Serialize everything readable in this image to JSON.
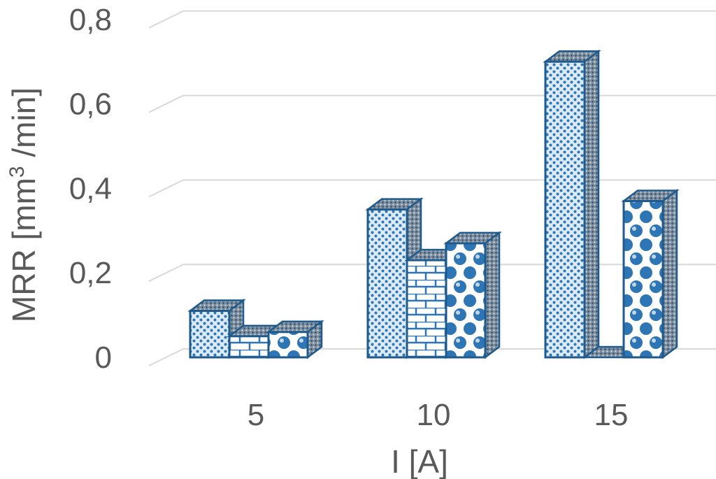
{
  "chart_data": {
    "type": "bar",
    "style": "3d-clustered-column",
    "categories": [
      "5",
      "10",
      "15"
    ],
    "series": [
      {
        "values": [
          0.11,
          0.35,
          0.7
        ]
      },
      {
        "values": [
          0.05,
          0.23,
          0.0
        ]
      },
      {
        "values": [
          0.06,
          0.27,
          0.37
        ]
      }
    ],
    "xlabel": "I [A]",
    "ylabel_main": "MRR [mm",
    "ylabel_sup": "3",
    "ylabel_tail": " /min]",
    "ylim": [
      0,
      0.8
    ],
    "y_ticks": [
      "0",
      "0,2",
      "0,4",
      "0,6",
      "0,8"
    ],
    "grid": true,
    "legend": "none",
    "colors": {
      "bar_fill": "#dcebf7",
      "bar_edge": "#1f5a8c",
      "pattern": "#2e75b6",
      "side_fill": "#7f8c99",
      "grid": "#d9d9d9",
      "text": "#595959"
    }
  }
}
